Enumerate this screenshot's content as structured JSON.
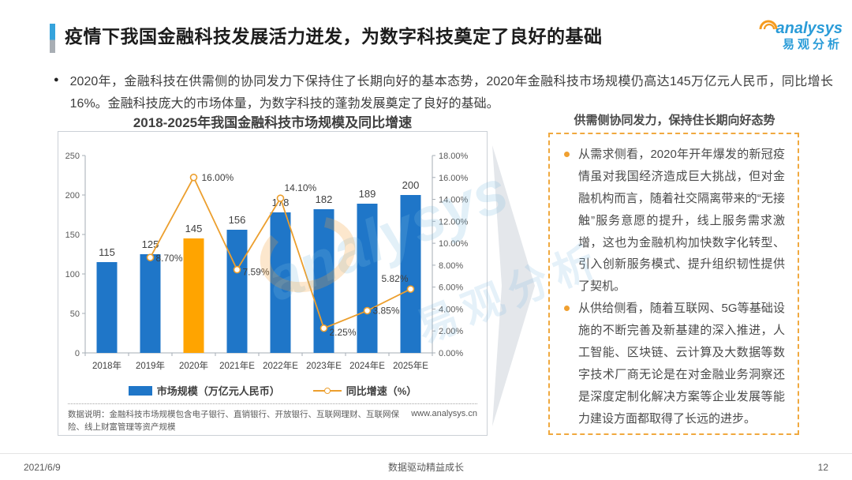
{
  "header": {
    "title": "疫情下我国金融科技发展活力迸发，为数字科技奠定了良好的基础",
    "logo": {
      "brand": "analysys",
      "brand_cn": "易观分析"
    }
  },
  "intro": {
    "text": "2020年，金融科技在供需侧的协同发力下保持住了长期向好的基本态势，2020年金融科技市场规模仍高达145万亿元人民币，同比增长16%。金融科技庞大的市场体量，为数字科技的蓬勃发展奠定了良好的基础。"
  },
  "chart_data": {
    "type": "bar+line",
    "title": "2018-2025年我国金融科技市场规模及同比增速",
    "categories": [
      "2018年",
      "2019年",
      "2020年",
      "2021年E",
      "2022年E",
      "2023年E",
      "2024年E",
      "2025年E"
    ],
    "series": [
      {
        "name": "市场规模（万亿元人民币）",
        "type": "bar",
        "values": [
          115,
          125,
          145,
          156,
          178,
          182,
          189,
          200
        ],
        "highlight_index": 2
      },
      {
        "name": "同比增速（%）",
        "type": "line",
        "values": [
          null,
          8.7,
          16.0,
          7.59,
          14.1,
          2.25,
          3.85,
          5.82
        ],
        "labels": [
          "",
          "8.70%",
          "16.00%",
          "7.59%",
          "14.10%",
          "2.25%",
          "3.85%",
          "5.82%"
        ]
      }
    ],
    "left_axis": {
      "min": 0,
      "max": 250,
      "step": 50
    },
    "right_axis": {
      "min": 0,
      "max": 18,
      "step": 2,
      "suffix": "%"
    },
    "legend_position": "bottom",
    "grid": false,
    "colors": {
      "bar": "#1F76C8",
      "highlight": "#FFA400",
      "line": "#EC9F2E"
    },
    "note": "数据说明：金融科技市场规模包含电子银行、直销银行、开放银行、互联网理财、互联网保险、线上财富管理等资产规模",
    "source_url": "www.analysys.cn"
  },
  "right_panel": {
    "title": "供需侧协同发力，保持住长期向好态势",
    "bullets": [
      "从需求侧看，2020年开年爆发的新冠疫情虽对我国经济造成巨大挑战，但对金融机构而言，随着社交隔离带来的“无接触”服务意愿的提升，线上服务需求激增，这也为金融机构加快数字化转型、引入创新服务模式、提升组织韧性提供了契机。",
      "从供给侧看，随着互联网、5G等基础设施的不断完善及新基建的深入推进，人工智能、区块链、云计算及大数据等数字技术厂商无论是在对金融业务洞察还是深度定制化解决方案等企业发展等能力建设方面都取得了长远的进步。"
    ]
  },
  "watermark": {
    "text": "analysys",
    "text_cn": "易观分析"
  },
  "footer": {
    "date": "2021/6/9",
    "slogan": "数据驱动精益成长",
    "page": "12"
  },
  "colors": {
    "accent_blue": "#2B9CD8",
    "panel_border": "#F0A93F",
    "arrow_gray": "#E4E7EB"
  }
}
